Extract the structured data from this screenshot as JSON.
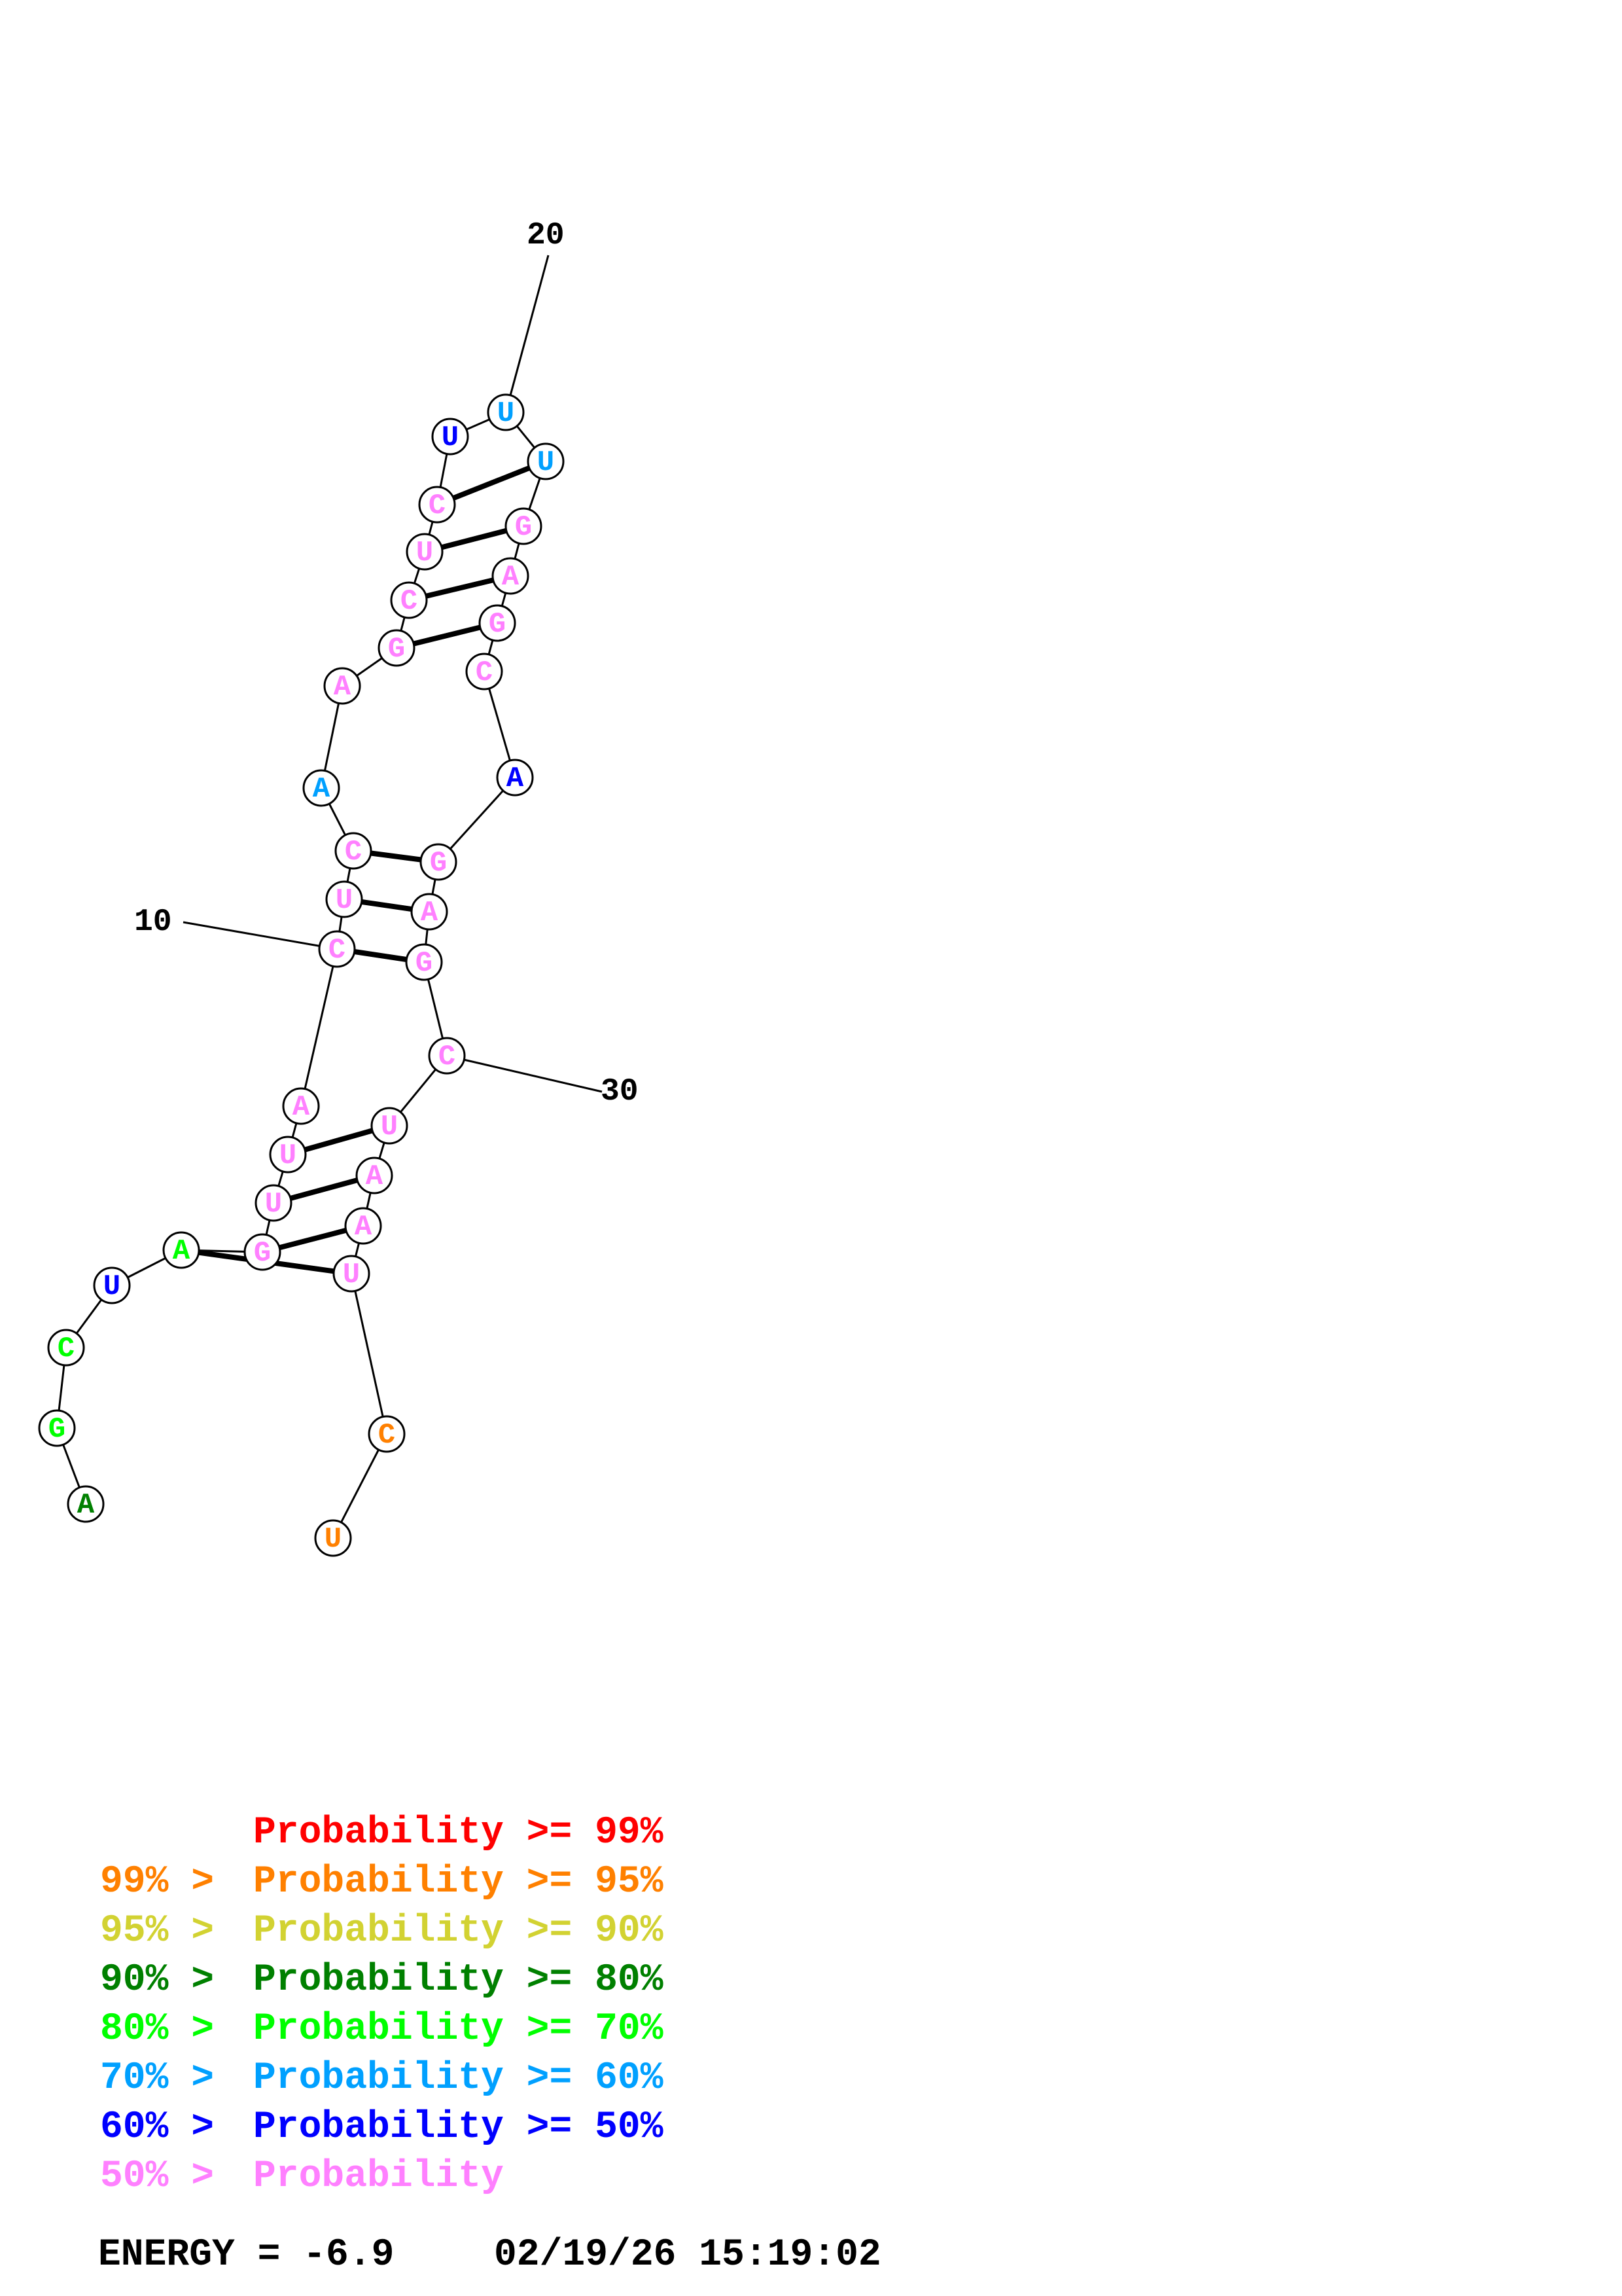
{
  "structure": {
    "sequence": [
      "A",
      "G",
      "C",
      "U",
      "A",
      "G",
      "U",
      "U",
      "A",
      "C",
      "U",
      "C",
      "A",
      "A",
      "G",
      "C",
      "U",
      "C",
      "U",
      "U",
      "U",
      "G",
      "A",
      "G",
      "C",
      "A",
      "G",
      "A",
      "G",
      "C",
      "U",
      "A",
      "A",
      "U",
      "C",
      "U"
    ],
    "probability_class": [
      4,
      5,
      5,
      7,
      5,
      8,
      8,
      8,
      8,
      8,
      8,
      8,
      6,
      8,
      8,
      8,
      8,
      8,
      7,
      6,
      6,
      8,
      8,
      8,
      8,
      7,
      8,
      8,
      8,
      8,
      8,
      8,
      8,
      8,
      2,
      2
    ],
    "pairs": [
      [
        5,
        34
      ],
      [
        6,
        33
      ],
      [
        7,
        32
      ],
      [
        8,
        31
      ],
      [
        10,
        29
      ],
      [
        11,
        28
      ],
      [
        12,
        27
      ],
      [
        15,
        24
      ],
      [
        16,
        23
      ],
      [
        17,
        22
      ],
      [
        18,
        21
      ]
    ],
    "position_labels": [
      {
        "index": 10,
        "text": "10"
      },
      {
        "index": 20,
        "text": "20"
      },
      {
        "index": 30,
        "text": "30"
      }
    ]
  },
  "legend": {
    "lines": [
      {
        "prefix": "",
        "label": "Probability >= 99%",
        "color": "#ff0000"
      },
      {
        "prefix": "99% > ",
        "label": "Probability >= 95%",
        "color": "#ff8000"
      },
      {
        "prefix": "95% > ",
        "label": "Probability >= 90%",
        "color": "#d2d232"
      },
      {
        "prefix": "90% > ",
        "label": "Probability >= 80%",
        "color": "#008000"
      },
      {
        "prefix": "80% > ",
        "label": "Probability >= 70%",
        "color": "#00ff00"
      },
      {
        "prefix": "70% > ",
        "label": "Probability >= 60%",
        "color": "#00a0ff"
      },
      {
        "prefix": "60% > ",
        "label": "Probability >= 50%",
        "color": "#0000ff"
      },
      {
        "prefix": "50% > ",
        "label": "Probability",
        "color": "#ff80ff"
      }
    ]
  },
  "footer": {
    "energy": "ENERGY = -6.9",
    "timestamp": "02/19/26 15:19:02"
  }
}
